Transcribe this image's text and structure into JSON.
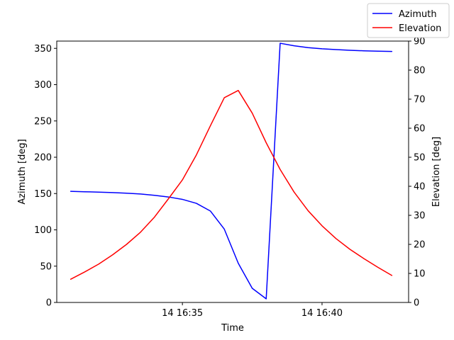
{
  "chart_data": {
    "type": "line",
    "xlabel": "Time",
    "ylabel_left": "Azimuth [deg]",
    "ylabel_right": "Elevation [deg]",
    "x_unit": "minutes",
    "xlim": [
      30.5,
      43.1
    ],
    "ylim_left": [
      0,
      360
    ],
    "ylim_right": [
      0,
      90
    ],
    "x_ticks": [
      {
        "value": 35,
        "label": "14 16:35"
      },
      {
        "value": 40,
        "label": "14 16:40"
      }
    ],
    "y_ticks_left": [
      0,
      50,
      100,
      150,
      200,
      250,
      300,
      350
    ],
    "y_ticks_right": [
      0,
      10,
      20,
      30,
      40,
      50,
      60,
      70,
      80,
      90
    ],
    "legend_position": "top-right",
    "grid": false,
    "x": [
      31.0,
      31.5,
      32.0,
      32.5,
      33.0,
      33.5,
      34.0,
      34.5,
      35.0,
      35.5,
      36.0,
      36.5,
      37.0,
      37.5,
      38.0,
      38.5,
      39.0,
      39.5,
      40.0,
      40.5,
      41.0,
      41.5,
      42.0,
      42.5
    ],
    "series": [
      {
        "name": "Azimuth",
        "axis": "left",
        "color": "#0000ff",
        "values": [
          153,
          152.5,
          152,
          151.3,
          150.5,
          149.4,
          147.6,
          145.3,
          142,
          136.5,
          126,
          101,
          54,
          19.5,
          5,
          357,
          353.5,
          351,
          349.4,
          348.3,
          347.3,
          346.6,
          346.1,
          345.7
        ]
      },
      {
        "name": "Elevation",
        "axis": "right",
        "color": "#ff0000",
        "values": [
          8,
          10.5,
          13.2,
          16.4,
          20,
          24.2,
          29.4,
          35.7,
          42.2,
          50.8,
          60.8,
          70.5,
          73,
          65.2,
          55,
          45.8,
          38,
          31.6,
          26.4,
          22,
          18.3,
          15.1,
          12.1,
          9.3
        ]
      }
    ]
  }
}
